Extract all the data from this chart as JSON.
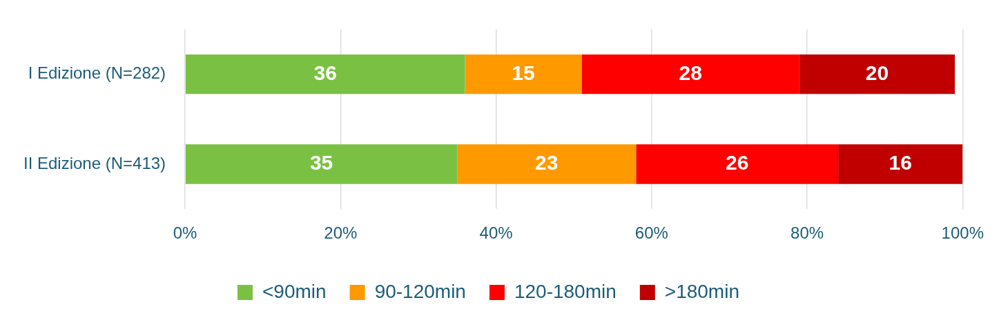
{
  "chart_data": {
    "type": "bar",
    "orientation": "horizontal",
    "stacked": true,
    "categories": [
      "I Edizione (N=282)",
      "II Edizione (N=413)"
    ],
    "series": [
      {
        "name": "<90min",
        "color": "#7ac143",
        "values": [
          36,
          35
        ]
      },
      {
        "name": "90-120min",
        "color": "#ff9900",
        "values": [
          15,
          23
        ]
      },
      {
        "name": "120-180min",
        "color": "#ff0000",
        "values": [
          28,
          26
        ]
      },
      {
        "name": ">180min",
        "color": "#c00000",
        "values": [
          20,
          16
        ]
      }
    ],
    "data_labels": true,
    "xlim": [
      0,
      100
    ],
    "xticks": [
      {
        "value": 0,
        "label": "0%"
      },
      {
        "value": 20,
        "label": "20%"
      },
      {
        "value": 40,
        "label": "40%"
      },
      {
        "value": 60,
        "label": "60%"
      },
      {
        "value": 80,
        "label": "80%"
      },
      {
        "value": 100,
        "label": "100%"
      }
    ],
    "grid": "x",
    "legend": "bottom"
  }
}
